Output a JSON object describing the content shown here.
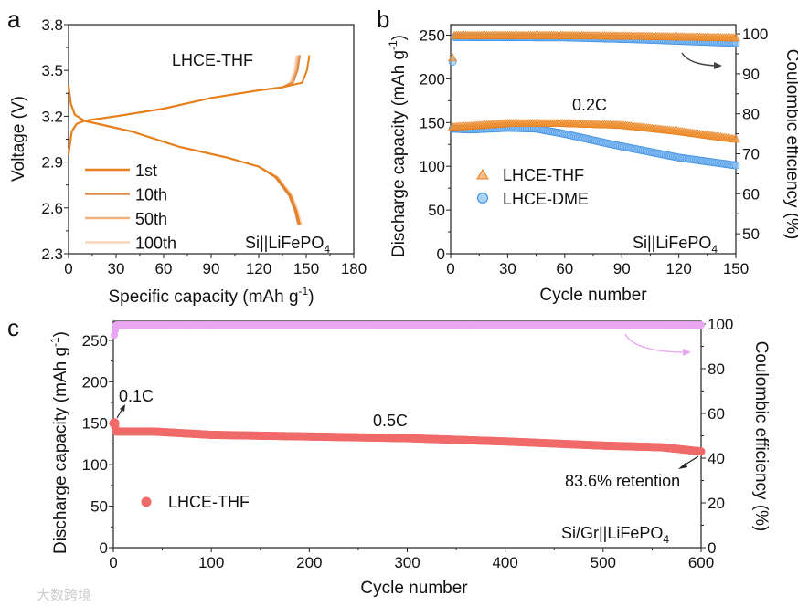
{
  "chart_data": [
    {
      "id": "a",
      "panel_label": "a",
      "type": "line",
      "title": "LHCE-THF",
      "annotation": "Si||LiFePO",
      "annotation_sub": "4",
      "xlabel": "Specific capacity (mAh g",
      "xlabel_sup": "-1",
      "xlabel_end": ")",
      "ylabel": "Voltage (V)",
      "xlim": [
        0,
        180
      ],
      "ylim": [
        2.3,
        3.8
      ],
      "xticks": [
        0,
        30,
        60,
        90,
        120,
        150,
        180
      ],
      "yticks": [
        "2.3",
        "2.6",
        "2.9",
        "3.2",
        "3.5",
        "3.8"
      ],
      "legend_position": "bottom-left",
      "series": [
        {
          "name": "1st",
          "color": "#E8801E",
          "charge_end": 152,
          "discharge_end": 146
        },
        {
          "name": "10th",
          "color": "#DC8A4A",
          "charge_end": 146,
          "discharge_end": 145
        },
        {
          "name": "50th",
          "color": "#F2B07A",
          "charge_end": 145,
          "discharge_end": 146
        },
        {
          "name": "100th",
          "color": "#F8D6BA",
          "charge_end": 144,
          "discharge_end": 147
        }
      ],
      "charge_profile": [
        [
          0,
          2.95
        ],
        [
          2,
          3.1
        ],
        [
          5,
          3.15
        ],
        [
          10,
          3.17
        ],
        [
          30,
          3.2
        ],
        [
          60,
          3.25
        ],
        [
          90,
          3.32
        ],
        [
          120,
          3.37
        ],
        [
          135,
          3.39
        ],
        [
          0.97,
          3.42
        ],
        [
          0.99,
          3.5
        ],
        [
          1.0,
          3.6
        ]
      ],
      "discharge_profile": [
        [
          0,
          3.4
        ],
        [
          1.5,
          3.28
        ],
        [
          4,
          3.21
        ],
        [
          10,
          3.17
        ],
        [
          40,
          3.1
        ],
        [
          70,
          3.0
        ],
        [
          100,
          2.93
        ],
        [
          120,
          2.87
        ],
        [
          0.9,
          2.8
        ],
        [
          0.96,
          2.68
        ],
        [
          0.985,
          2.58
        ],
        [
          1.0,
          2.49
        ]
      ]
    },
    {
      "id": "b",
      "panel_label": "b",
      "type": "scatter",
      "annotation_rate": "0.2C",
      "annotation": "Si||LiFePO",
      "annotation_sub": "4",
      "xlabel": "Cycle number",
      "ylabel": "Discharge capacity (mAh g",
      "ylabel_sup": "-1",
      "ylabel_end": ")",
      "y2label": "Coulombic efficiency (%)",
      "xlim": [
        0,
        150
      ],
      "ylim": [
        0,
        262
      ],
      "y2lim": [
        45,
        102.3
      ],
      "xticks": [
        0,
        30,
        60,
        90,
        120,
        150
      ],
      "yticks": [
        0,
        50,
        100,
        150,
        200,
        250
      ],
      "y2ticks": [
        50,
        60,
        70,
        80,
        90,
        100
      ],
      "legend_position": "bottom-left",
      "series": [
        {
          "name": "LHCE-THF",
          "marker": "triangle",
          "color": "#F39A3D",
          "edge": "#E47C1A",
          "capacity": [
            [
              1,
              145
            ],
            [
              10,
              146
            ],
            [
              30,
              149
            ],
            [
              60,
              149
            ],
            [
              90,
              147
            ],
            [
              120,
              140
            ],
            [
              140,
              134
            ],
            [
              150,
              131
            ]
          ],
          "ce": [
            [
              1,
              94
            ],
            [
              2,
              99.6
            ],
            [
              60,
              99.6
            ],
            [
              100,
              99.4
            ],
            [
              150,
              99
            ]
          ]
        },
        {
          "name": "LHCE-DME",
          "marker": "circle",
          "color": "#8CC2F5",
          "edge": "#3A8DE0",
          "capacity": [
            [
              1,
              143
            ],
            [
              10,
              142
            ],
            [
              30,
              144
            ],
            [
              45,
              143
            ],
            [
              60,
              137
            ],
            [
              85,
              125
            ],
            [
              120,
              110
            ],
            [
              150,
              101
            ]
          ],
          "ce": [
            [
              1,
              93
            ],
            [
              2,
              99.2
            ],
            [
              60,
              99.1
            ],
            [
              100,
              98.6
            ],
            [
              150,
              97.7
            ]
          ]
        }
      ]
    },
    {
      "id": "c",
      "panel_label": "c",
      "type": "scatter",
      "annotation_rate_1": "0.1C",
      "annotation_rate_2": "0.5C",
      "annotation_retention": "83.6% retention",
      "annotation": "Si/Gr||LiFePO",
      "annotation_sub": "4",
      "xlabel": "Cycle number",
      "ylabel": "Discharge capacity (mAh g",
      "ylabel_sup": "-1",
      "ylabel_end": ")",
      "y2label": "Coulombic efficiency (%)",
      "xlim": [
        0,
        600
      ],
      "ylim": [
        0,
        273
      ],
      "y2lim": [
        0,
        101.2
      ],
      "xticks": [
        0,
        100,
        200,
        300,
        400,
        500,
        600
      ],
      "yticks": [
        0,
        50,
        100,
        150,
        200,
        250
      ],
      "y2ticks": [
        0,
        20,
        40,
        60,
        80,
        100
      ],
      "legend_position": "bottom-left",
      "series": [
        {
          "name": "LHCE-THF",
          "marker": "circle",
          "color": "#F06A6A",
          "ce_color": "#E9A6F2",
          "capacity": [
            [
              1,
              150
            ],
            [
              3,
              140
            ],
            [
              40,
              140
            ],
            [
              100,
              136
            ],
            [
              200,
              134
            ],
            [
              300,
              132
            ],
            [
              400,
              128
            ],
            [
              500,
              123
            ],
            [
              560,
              121
            ],
            [
              600,
              116
            ]
          ],
          "ce": [
            [
              1,
              95
            ],
            [
              3,
              99.5
            ],
            [
              600,
              99.5
            ]
          ]
        }
      ]
    }
  ],
  "watermark": "大数跨境"
}
